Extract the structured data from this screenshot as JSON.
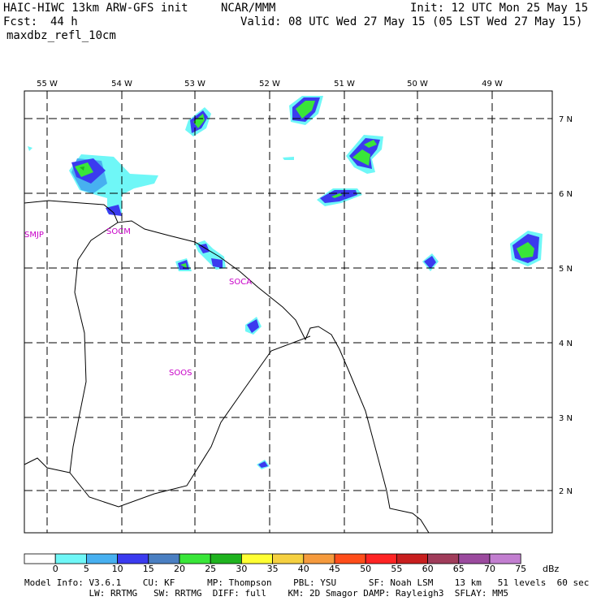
{
  "header": {
    "model": "HAIC-HIWC 13km ARW-GFS init",
    "center": "NCAR/MMM",
    "init": "Init: 12 UTC Mon 25 May 15",
    "fcst_label": "Fcst:",
    "fcst_value": "44 h",
    "valid": "Valid: 08 UTC Wed 27 May 15 (05 LST Wed 27 May 15)",
    "field": "maxdbz_refl_10cm"
  },
  "map": {
    "lon_labels": [
      "55 W",
      "54 W",
      "53 W",
      "52 W",
      "51 W",
      "50 W",
      "49 W"
    ],
    "lat_labels": [
      "7 N",
      "6 N",
      "5 N",
      "4 N",
      "3 N",
      "2 N"
    ],
    "stations": [
      "SMJP",
      "SOCM",
      "SOCA",
      "SOOS"
    ]
  },
  "colorbar": {
    "ticks": [
      "0",
      "5",
      "10",
      "15",
      "20",
      "25",
      "30",
      "35",
      "40",
      "45",
      "50",
      "55",
      "60",
      "65",
      "70",
      "75"
    ],
    "unit": "dBz",
    "colors": [
      "#ffffff",
      "#6ff7f7",
      "#47b0f0",
      "#3b3bef",
      "#4a7fc2",
      "#39e639",
      "#1fb31f",
      "#ffff33",
      "#f5d040",
      "#f59a3d",
      "#ff4d1a",
      "#ff2424",
      "#c81e1e",
      "#a03c5a",
      "#9b4a9e",
      "#c27ed0"
    ]
  },
  "footer": {
    "line1": "Model Info: V3.6.1    CU: KF      MP: Thompson    PBL: YSU      SF: Noah LSM    13 km   51 levels  60 sec",
    "line2": "            LW: RRTMG   SW: RRTMG  DIFF: full    KM: 2D Smagor DAMP: Rayleigh3  SFLAY: MM5"
  }
}
